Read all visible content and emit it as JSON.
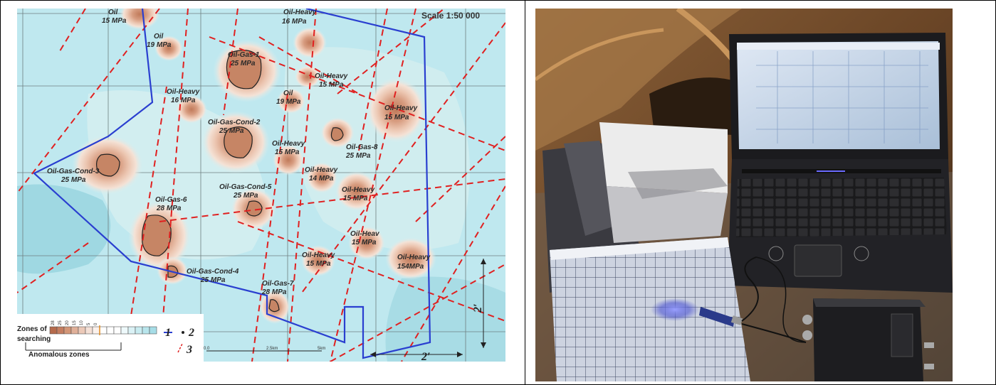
{
  "map": {
    "scale": "Scale 1:50 000",
    "deposits": [
      {
        "id": "oil-15-top",
        "type": "Oil",
        "pressure": "15 MPa"
      },
      {
        "id": "oil-heavy-16-top",
        "type": "Oil-Heavy",
        "pressure": "16 MPa"
      },
      {
        "id": "oil-19",
        "type": "Oil",
        "pressure": "19 MPa"
      },
      {
        "id": "oil-gas-1",
        "type": "Oil-Gas-1",
        "pressure": "25 MPa"
      },
      {
        "id": "oil-heavy-15-a",
        "type": "Oil-Heavy",
        "pressure": "15 MPa"
      },
      {
        "id": "oil-19-b",
        "type": "Oil",
        "pressure": "19 MPa"
      },
      {
        "id": "oil-heavy-16-b",
        "type": "Oil-Heavy",
        "pressure": "16 MPa"
      },
      {
        "id": "oil-heavy-15-right",
        "type": "Oil-Heavy",
        "pressure": "15 MPa"
      },
      {
        "id": "oil-gas-cond-2",
        "type": "Oil-Gas-Cond-2",
        "pressure": "25 MPa"
      },
      {
        "id": "oil-gas-8",
        "type": "Oil-Gas-8",
        "pressure": "25 MPa"
      },
      {
        "id": "oil-heavy-15-c",
        "type": "Oil-Heavy",
        "pressure": "15 MPa"
      },
      {
        "id": "oil-gas-cond-3",
        "type": "Oil-Gas-Cond-3",
        "pressure": "25 MPa"
      },
      {
        "id": "oil-heavy-14",
        "type": "Oil-Heavy",
        "pressure": "14 MPa"
      },
      {
        "id": "oil-heavy-15-d",
        "type": "Oil-Heavy",
        "pressure": "15 MPa"
      },
      {
        "id": "oil-gas-cond-5",
        "type": "Oil-Gas-Cond-5",
        "pressure": "25 MPa"
      },
      {
        "id": "oil-gas-6",
        "type": "Oil-Gas-6",
        "pressure": "28 MPa"
      },
      {
        "id": "oil-heav-15",
        "type": "Oil-Heav",
        "pressure": "15 MPa"
      },
      {
        "id": "oil-heavy-15-e",
        "type": "Oil-Heavy",
        "pressure": "15 MPa"
      },
      {
        "id": "oil-heavy-154",
        "type": "Oil-Heavy",
        "pressure": "154MPa"
      },
      {
        "id": "oil-gas-cond-4",
        "type": "Oil-Gas-Cond-4",
        "pressure": "25 MPa"
      },
      {
        "id": "oil-gas-7",
        "type": "Oil-Gas-7",
        "pressure": "28 MPa"
      }
    ],
    "legend": {
      "zones_label_1": "Zones of",
      "zones_label_2": "searching",
      "anomalous_label": "Anomalous zones",
      "scale_values": [
        "28",
        "25",
        "20",
        "15",
        "10",
        "5",
        "0"
      ],
      "marker_1": "1",
      "marker_2": "2",
      "marker_3": "3"
    },
    "scale_bar": {
      "start": "0.0",
      "mid": "2.5km",
      "end": "5km"
    },
    "grid_marks": {
      "horizontal": "2′",
      "vertical": "2′"
    },
    "colors": {
      "background": "#bfe8ef",
      "boundary": "#2a3fd0",
      "faults": "#e02020",
      "grid": "#7a8a8a",
      "anomaly_core": "#c98866",
      "anomaly_mid": "#e7b9a2",
      "anomaly_outer": "#f2dccf"
    }
  },
  "photo": {
    "description_icons": [
      "laptop-icon",
      "grid-target-icon",
      "laser-pointer-icon",
      "oscilloscope-box-icon"
    ]
  }
}
